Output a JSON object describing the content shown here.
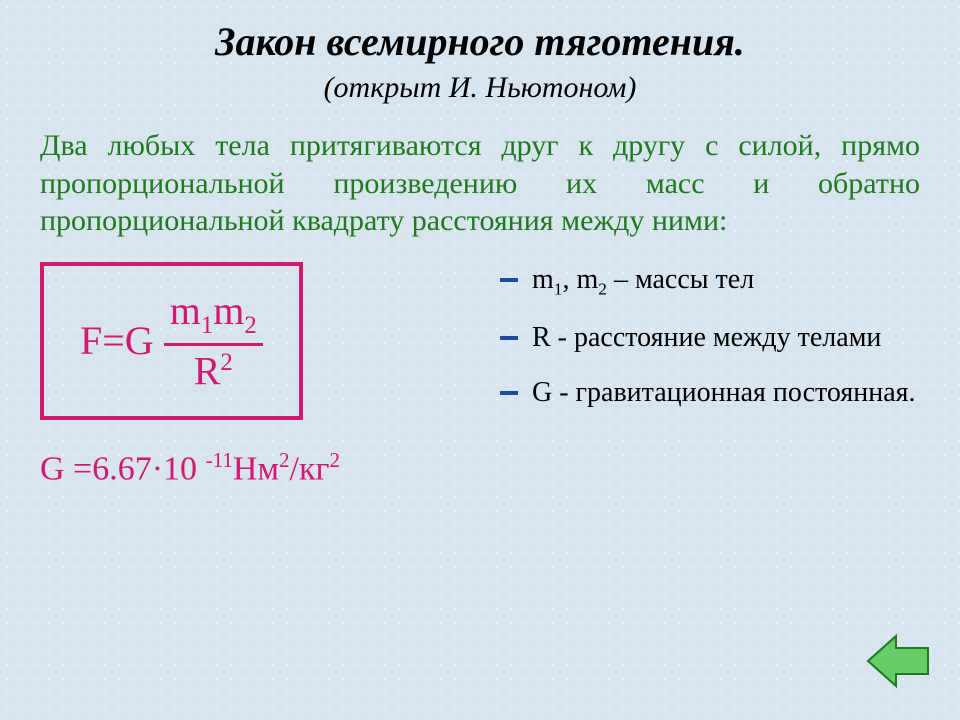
{
  "title": "Закон всемирного тяготения.",
  "subtitle": "(открыт И. Ньютоном)",
  "statement": "Два любых тела притягиваются друг к другу с силой, прямо пропорциональной произведению их масс и обратно пропорциональной квадрату расстояния между ними:",
  "formula": {
    "lhs": "F=G",
    "numerator_html": "m<sub>1</sub>m<sub>2</sub>",
    "denominator_html": "R<sup>2</sup>",
    "border_color": "#d11a6f",
    "text_color": "#d11a6f",
    "fontsize": 40
  },
  "constant_html": "G =6.67·10 <sup>-11</sup>Нм<sup>2</sup>/кг<sup>2</sup>",
  "legend": [
    {
      "html": "m<sub>1</sub>, m<sub>2</sub> – массы тел"
    },
    {
      "html": " R - расстояние между телами"
    },
    {
      "html": "G - гравитационная постоянная."
    }
  ],
  "colors": {
    "background": "#d8e4ee",
    "title": "#000000",
    "statement": "#1f7a1f",
    "accent": "#d11a6f",
    "bullet": "#1f4aa0",
    "arrow_fill": "#66cc66",
    "arrow_stroke": "#1f7a1f"
  },
  "typography": {
    "title_fontsize": 40,
    "subtitle_fontsize": 30,
    "statement_fontsize": 30,
    "legend_fontsize": 28,
    "constant_fontsize": 34,
    "font_family": "Times New Roman"
  },
  "nav": {
    "direction": "back"
  }
}
